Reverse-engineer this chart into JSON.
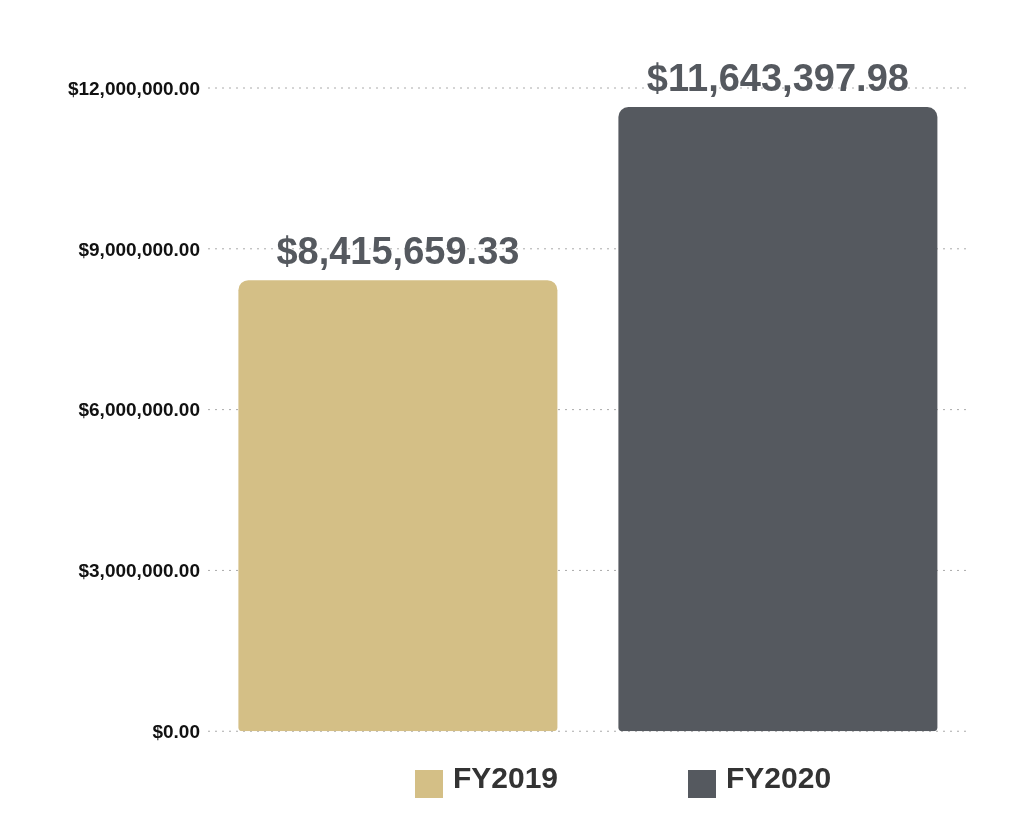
{
  "chart_data": {
    "type": "bar",
    "categories": [
      null,
      null
    ],
    "series": [
      {
        "name": "FY2019",
        "color": "#d4bf86",
        "values": [
          8415659.33,
          null
        ],
        "value_labels": [
          "$8,415,659.33",
          null
        ]
      },
      {
        "name": "FY2020",
        "color": "#55595f",
        "values": [
          null,
          11643397.98
        ],
        "value_labels": [
          null,
          "$11,643,397.98"
        ]
      }
    ],
    "ylim": [
      0,
      12000000
    ],
    "yticks": [
      {
        "value": 0,
        "label": "$0.00"
      },
      {
        "value": 3000000,
        "label": "$3,000,000.00"
      },
      {
        "value": 6000000,
        "label": "$6,000,000.00"
      },
      {
        "value": 9000000,
        "label": "$9,000,000.00"
      },
      {
        "value": 12000000,
        "label": "$12,000,000.00"
      }
    ],
    "grid": "y",
    "legend": "bottom"
  }
}
